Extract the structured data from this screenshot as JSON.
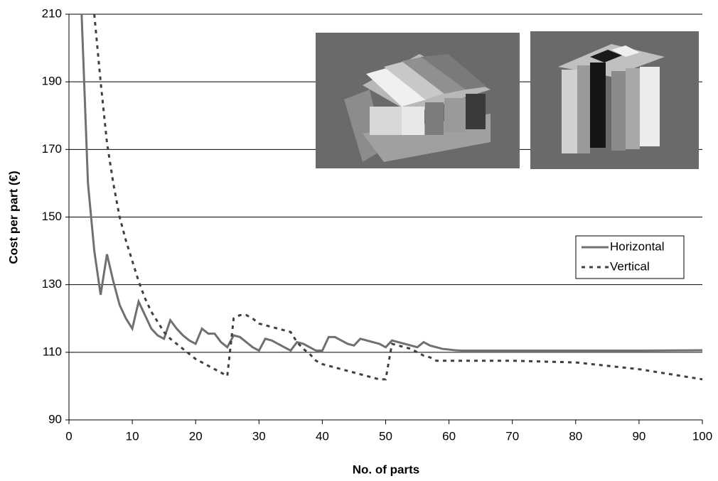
{
  "chart_data": {
    "type": "line",
    "x_label": "No. of parts",
    "y_label": "Cost per part (€)",
    "xlim": [
      0,
      100
    ],
    "xticks": [
      0,
      10,
      20,
      30,
      40,
      50,
      60,
      70,
      80,
      90,
      100
    ],
    "ylim": [
      90,
      210
    ],
    "yticks": [
      90,
      110,
      130,
      150,
      170,
      190,
      210
    ],
    "grid": true,
    "legend": "right",
    "series": [
      {
        "name": "Horizontal",
        "color": "#707070",
        "line_style": "solid",
        "x": [
          2,
          3,
          4,
          5,
          6,
          7,
          8,
          9,
          10,
          11,
          12,
          13,
          14,
          15,
          16,
          17,
          18,
          19,
          20,
          21,
          22,
          23,
          24,
          25,
          26,
          27,
          28,
          29,
          30,
          31,
          32,
          33,
          34,
          35,
          36,
          37,
          38,
          39,
          40,
          41,
          42,
          43,
          44,
          45,
          46,
          47,
          48,
          49,
          50,
          51,
          52,
          53,
          54,
          55,
          56,
          57,
          58,
          59,
          60,
          61,
          62,
          70,
          80,
          90,
          100
        ],
        "values": [
          210,
          160,
          140,
          127,
          139,
          131,
          124,
          120,
          117,
          125,
          121,
          117,
          115,
          114,
          119.5,
          117,
          115,
          113.5,
          112.5,
          117,
          115.5,
          115.5,
          113,
          111.5,
          115,
          114.5,
          113,
          111.5,
          110.5,
          114,
          113.5,
          112.5,
          111.5,
          110.5,
          113,
          112.5,
          111.5,
          110.5,
          110.5,
          114.5,
          114.5,
          113.5,
          112.5,
          112,
          114,
          113.5,
          113,
          112.5,
          111.5,
          113.5,
          113,
          112.5,
          112,
          111.5,
          113,
          112,
          111.5,
          111,
          110.8,
          110.6,
          110.5,
          110.5,
          110.5,
          110.5,
          110.6
        ]
      },
      {
        "name": "Vertical",
        "color": "#404040",
        "line_style": "dashed",
        "x": [
          4,
          5,
          6,
          7,
          8,
          9,
          10,
          11,
          12,
          13,
          14,
          15,
          16,
          17,
          18,
          19,
          20,
          21,
          22,
          23,
          24,
          25,
          26,
          27,
          28,
          29,
          30,
          31,
          32,
          33,
          34,
          35,
          36,
          37,
          38,
          39,
          40,
          41,
          42,
          43,
          44,
          45,
          46,
          47,
          48,
          49,
          50,
          51,
          52,
          53,
          54,
          55,
          56,
          57,
          58,
          60,
          70,
          80,
          85,
          90,
          95,
          100
        ],
        "values": [
          210,
          190,
          172,
          160,
          150,
          143,
          137,
          131,
          126,
          122,
          119,
          116,
          114,
          112.5,
          111,
          109.5,
          108,
          107,
          106,
          105,
          104,
          103,
          120,
          121,
          121,
          120,
          118.5,
          118,
          117.5,
          117,
          116.5,
          116,
          113,
          111,
          109.5,
          107.5,
          106.5,
          106,
          105.5,
          105,
          104.5,
          104,
          103.5,
          103,
          102.5,
          102,
          102,
          112.5,
          112,
          111.5,
          111,
          110,
          109,
          108.5,
          107.5,
          107.5,
          107.5,
          107,
          106,
          105,
          103.5,
          102
        ]
      }
    ]
  }
}
